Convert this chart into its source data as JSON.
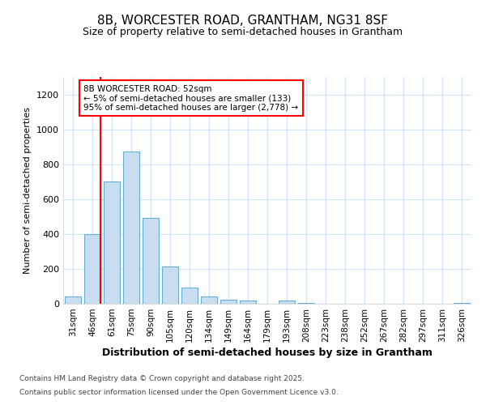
{
  "title1": "8B, WORCESTER ROAD, GRANTHAM, NG31 8SF",
  "title2": "Size of property relative to semi-detached houses in Grantham",
  "xlabel": "Distribution of semi-detached houses by size in Grantham",
  "ylabel": "Number of semi-detached properties",
  "categories": [
    "31sqm",
    "46sqm",
    "61sqm",
    "75sqm",
    "90sqm",
    "105sqm",
    "120sqm",
    "134sqm",
    "149sqm",
    "164sqm",
    "179sqm",
    "193sqm",
    "208sqm",
    "223sqm",
    "238sqm",
    "252sqm",
    "267sqm",
    "282sqm",
    "297sqm",
    "311sqm",
    "326sqm"
  ],
  "values": [
    40,
    400,
    700,
    875,
    490,
    215,
    95,
    40,
    25,
    20,
    0,
    20,
    5,
    0,
    0,
    0,
    0,
    0,
    0,
    0,
    5
  ],
  "bar_color": "#c8ddf0",
  "bar_edgecolor": "#6aaed6",
  "red_line_index": 1,
  "annotation_title": "8B WORCESTER ROAD: 52sqm",
  "annotation_line1": "← 5% of semi-detached houses are smaller (133)",
  "annotation_line2": "95% of semi-detached houses are larger (2,778) →",
  "footnote1": "Contains HM Land Registry data © Crown copyright and database right 2025.",
  "footnote2": "Contains public sector information licensed under the Open Government Licence v3.0.",
  "ylim": [
    0,
    1300
  ],
  "yticks": [
    0,
    200,
    400,
    600,
    800,
    1000,
    1200
  ],
  "background_color": "#ffffff",
  "plot_bg_color": "#ffffff",
  "grid_color": "#d0e4f7"
}
